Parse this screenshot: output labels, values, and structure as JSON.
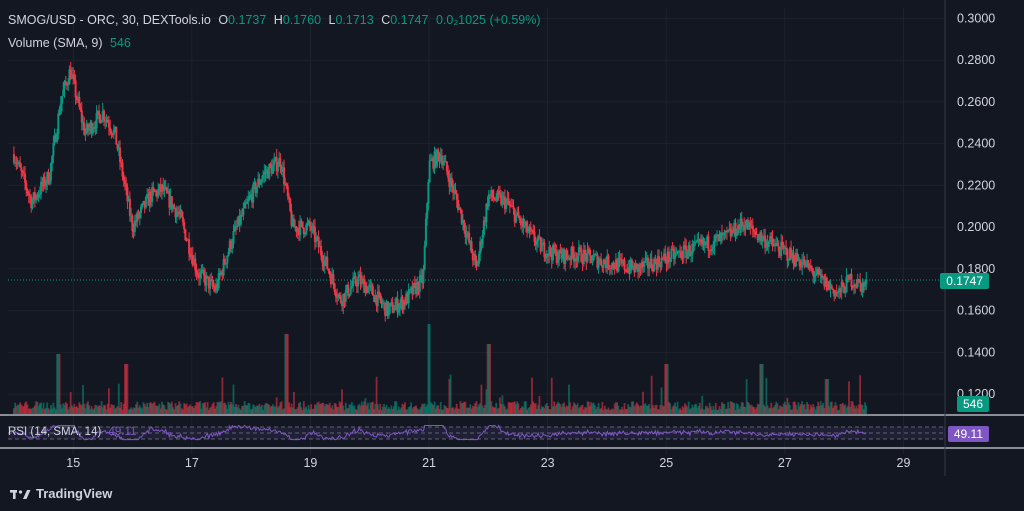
{
  "header": {
    "symbol": "SMOG/USD - ORC, 30, DEXTools.io",
    "o_label": "O",
    "o_value": "0.1737",
    "h_label": "H",
    "h_value": "0.1760",
    "l_label": "L",
    "l_value": "0.1713",
    "c_label": "C",
    "c_value": "0.1747",
    "change": "0.0₂1025 (+0.59%)",
    "volume_label": "Volume (SMA, 9)",
    "volume_value": "546"
  },
  "rsi": {
    "label": "RSI (14, SMA, 14)",
    "value": "49.11"
  },
  "price_tag": "0.1747",
  "volume_tag": "546",
  "rsi_tag": "49.11",
  "brand": "TradingView",
  "colors": {
    "up": "#089981",
    "down": "#f23645",
    "rsi": "#7e57c2",
    "bg": "#131722",
    "grid": "#1e222d"
  },
  "chart_data": {
    "type": "candlestick",
    "yticks": [
      "0.3000",
      "0.2800",
      "0.2600",
      "0.2400",
      "0.2200",
      "0.2000",
      "0.1800",
      "0.1600",
      "0.1400",
      "0.1200"
    ],
    "xticks": [
      "15",
      "17",
      "19",
      "21",
      "23",
      "25",
      "27",
      "29"
    ],
    "ylim": [
      0.11,
      0.305
    ],
    "last_price": 0.1747,
    "price_path": [
      [
        14.0,
        0.235
      ],
      [
        14.3,
        0.212
      ],
      [
        14.6,
        0.225
      ],
      [
        14.8,
        0.262
      ],
      [
        14.95,
        0.275
      ],
      [
        15.2,
        0.245
      ],
      [
        15.5,
        0.255
      ],
      [
        15.7,
        0.245
      ],
      [
        16.0,
        0.2
      ],
      [
        16.3,
        0.215
      ],
      [
        16.5,
        0.218
      ],
      [
        16.8,
        0.205
      ],
      [
        17.1,
        0.178
      ],
      [
        17.4,
        0.17
      ],
      [
        17.7,
        0.196
      ],
      [
        18.0,
        0.215
      ],
      [
        18.2,
        0.225
      ],
      [
        18.5,
        0.232
      ],
      [
        18.7,
        0.2
      ],
      [
        19.0,
        0.2
      ],
      [
        19.3,
        0.18
      ],
      [
        19.5,
        0.165
      ],
      [
        19.8,
        0.175
      ],
      [
        20.0,
        0.17
      ],
      [
        20.3,
        0.16
      ],
      [
        20.6,
        0.165
      ],
      [
        20.9,
        0.175
      ],
      [
        21.0,
        0.23
      ],
      [
        21.2,
        0.235
      ],
      [
        21.5,
        0.21
      ],
      [
        21.8,
        0.18
      ],
      [
        22.0,
        0.215
      ],
      [
        22.3,
        0.212
      ],
      [
        22.6,
        0.2
      ],
      [
        22.9,
        0.19
      ],
      [
        23.2,
        0.186
      ],
      [
        23.5,
        0.187
      ],
      [
        24.0,
        0.183
      ],
      [
        24.5,
        0.18
      ],
      [
        25.0,
        0.185
      ],
      [
        25.5,
        0.19
      ],
      [
        26.0,
        0.195
      ],
      [
        26.3,
        0.202
      ],
      [
        26.6,
        0.195
      ],
      [
        27.0,
        0.188
      ],
      [
        27.3,
        0.183
      ],
      [
        27.6,
        0.175
      ],
      [
        27.9,
        0.168
      ],
      [
        28.1,
        0.175
      ],
      [
        28.3,
        0.172
      ]
    ],
    "volume_spikes": [
      [
        14.75,
        0.6
      ],
      [
        15.9,
        0.5
      ],
      [
        18.6,
        0.8
      ],
      [
        21.0,
        0.9
      ],
      [
        22.0,
        0.7
      ],
      [
        26.6,
        0.5
      ],
      [
        25.0,
        0.5
      ],
      [
        27.7,
        0.35
      ]
    ],
    "rsi_range": [
      30,
      70
    ]
  }
}
